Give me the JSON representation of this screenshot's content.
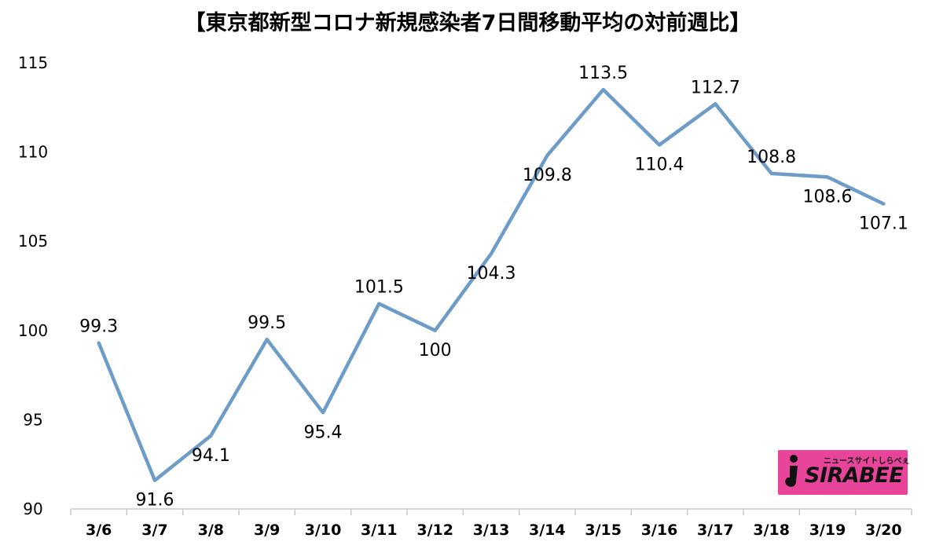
{
  "chart_data": {
    "type": "line",
    "title": "【東京都新型コロナ新規感染者7日間移動平均の対前週比】",
    "xlabel": "",
    "ylabel": "",
    "categories": [
      "3/6",
      "3/7",
      "3/8",
      "3/9",
      "3/10",
      "3/11",
      "3/12",
      "3/13",
      "3/14",
      "3/15",
      "3/16",
      "3/17",
      "3/18",
      "3/19",
      "3/20"
    ],
    "values": [
      99.3,
      91.6,
      94.1,
      99.5,
      95.4,
      101.5,
      100,
      104.3,
      109.8,
      113.5,
      110.4,
      112.7,
      108.8,
      108.6,
      107.1
    ],
    "labels": [
      "99.3",
      "91.6",
      "94.1",
      "99.5",
      "95.4",
      "101.5",
      "100",
      "104.3",
      "109.8",
      "113.5",
      "110.4",
      "112.7",
      "108.8",
      "108.6",
      "107.1"
    ],
    "ylim": [
      90,
      115
    ],
    "yticks": [
      "90",
      "95",
      "100",
      "105",
      "110",
      "115"
    ],
    "grid": false,
    "legend": "none",
    "line_color": "#6e9cc8"
  },
  "logo": {
    "small_text": "ニュースサイトしらべぇ",
    "main_text": "SIRABEE",
    "background": "#e8459a"
  }
}
